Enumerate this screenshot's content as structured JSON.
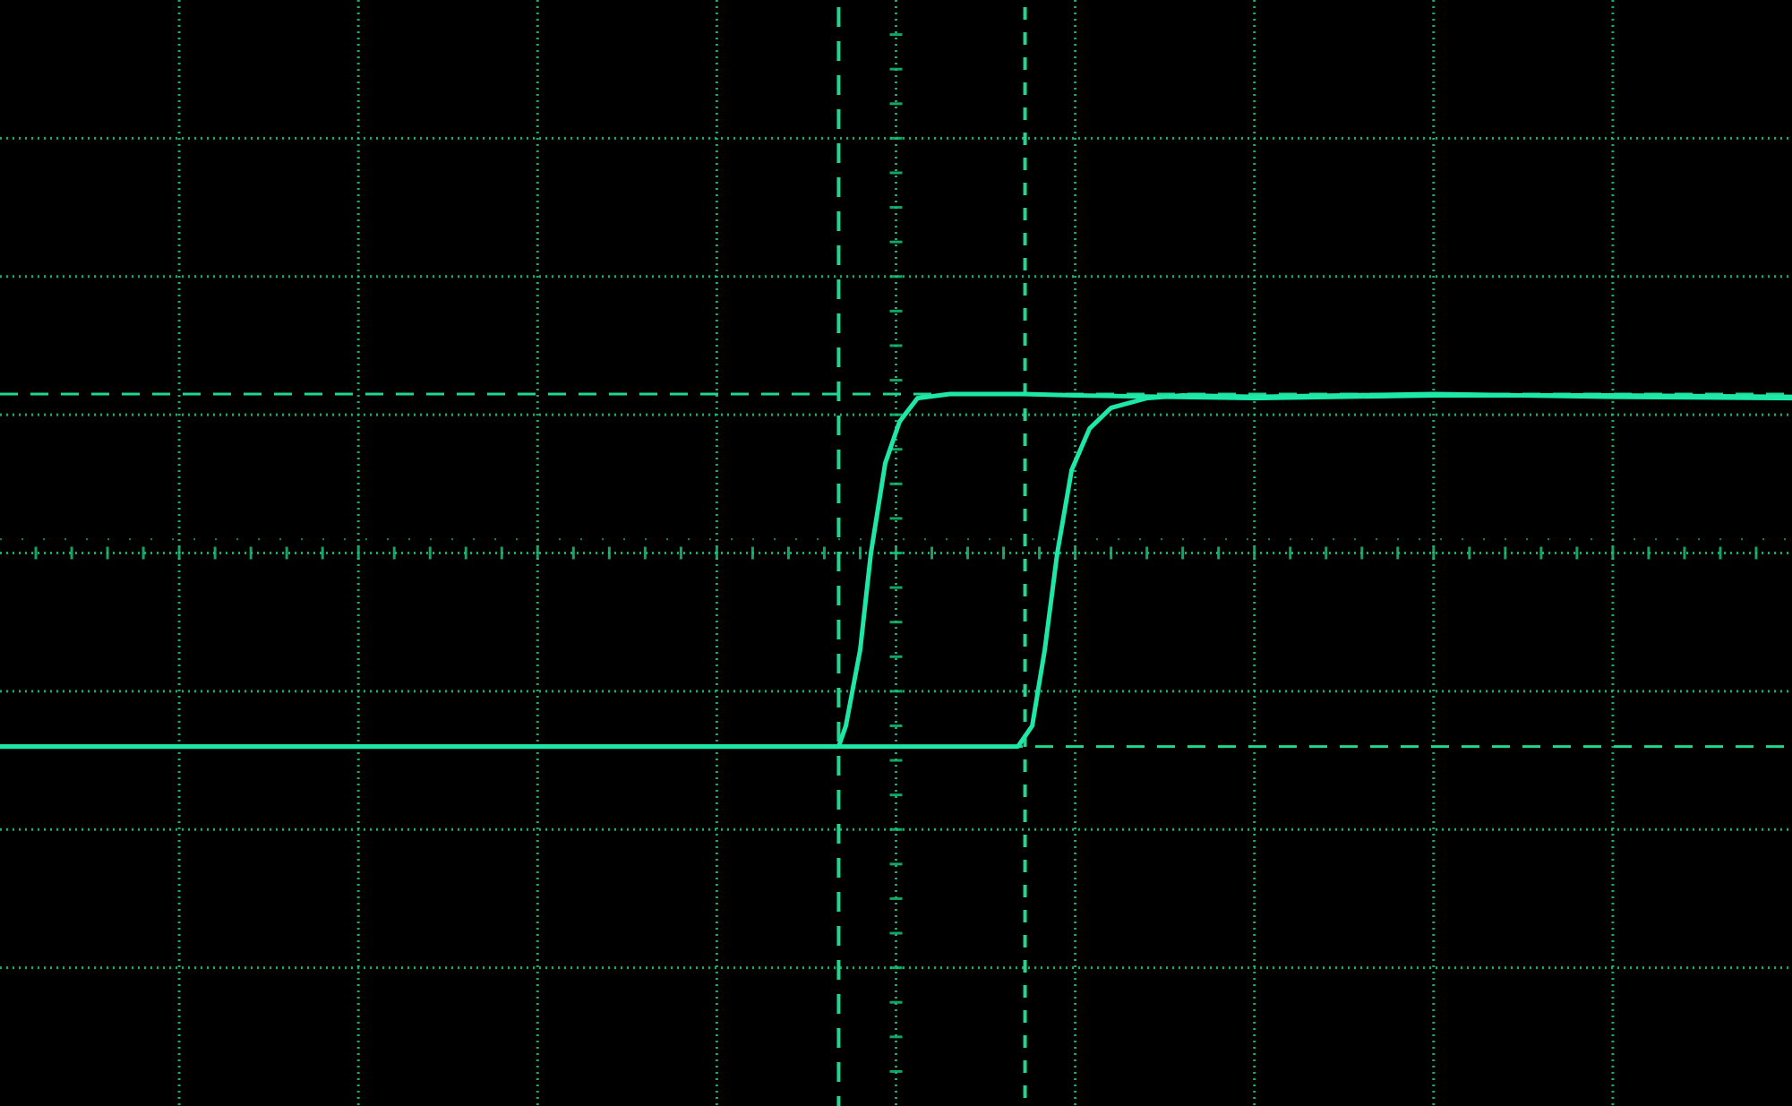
{
  "chart_data": {
    "type": "line",
    "title": "",
    "xlabel": "",
    "ylabel": "",
    "grid": true,
    "legend": "none",
    "xlim": [
      0,
      10
    ],
    "ylim": [
      0,
      8
    ],
    "x_divisions": 10,
    "y_divisions": 8,
    "minor_ticks_per_division": 5,
    "x_minor_tick_division": 5,
    "y_minor_tick_division": 4,
    "cursors": {
      "vertical": [
        4.68,
        5.72
      ],
      "horizontal": [
        2.6,
        5.15
      ]
    },
    "series": [
      {
        "x": [
          0,
          4.68,
          4.72,
          4.8,
          4.86,
          4.94,
          5.02,
          5.12,
          5.3,
          5.5,
          5.7,
          6.0,
          7.0,
          8.0,
          9.0,
          10.0
        ],
        "y": [
          2.6,
          2.6,
          2.75,
          3.3,
          4.0,
          4.65,
          4.95,
          5.12,
          5.15,
          5.15,
          5.15,
          5.14,
          5.12,
          5.14,
          5.14,
          5.13
        ]
      },
      {
        "x": [
          0,
          5.0,
          5.5,
          5.68,
          5.76,
          5.83,
          5.9,
          5.98,
          6.08,
          6.2,
          6.4,
          6.6,
          7.0,
          8.0,
          9.0,
          10.0
        ],
        "y": [
          2.6,
          2.6,
          2.6,
          2.6,
          2.75,
          3.3,
          4.0,
          4.6,
          4.9,
          5.05,
          5.12,
          5.14,
          5.13,
          5.15,
          5.13,
          5.12
        ]
      }
    ],
    "colors": {
      "background": "#000000",
      "grid": "#14c474",
      "trace": "#1ee8a8",
      "cursor": "#22d68e"
    }
  }
}
